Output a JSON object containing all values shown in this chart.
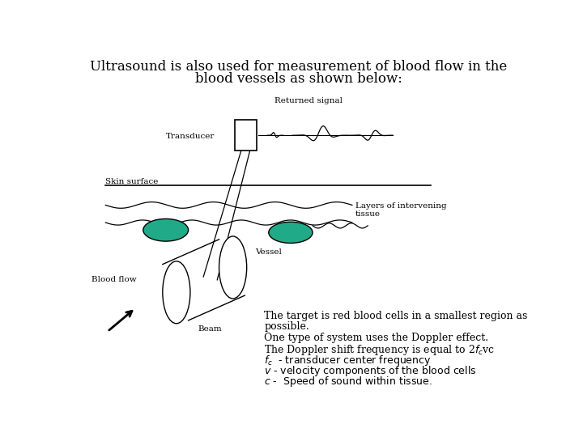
{
  "title_line1": "Ultrasound is also used for measurement of blood flow in the",
  "title_line2": "blood vessels as shown below:",
  "title_fontsize": 12,
  "bg_color": "#ffffff",
  "label_transducer": "Transducer",
  "label_returned_signal": "Returned signal",
  "label_skin_surface": "Skin surface",
  "label_layers": "Layers of intervening\ntissue",
  "label_vessel": "Vessel",
  "label_blood_flow": "Blood flow",
  "label_beam": "Beam",
  "teal_color": "#20aa88",
  "line_color": "#000000",
  "font_family": "DejaVu Serif"
}
